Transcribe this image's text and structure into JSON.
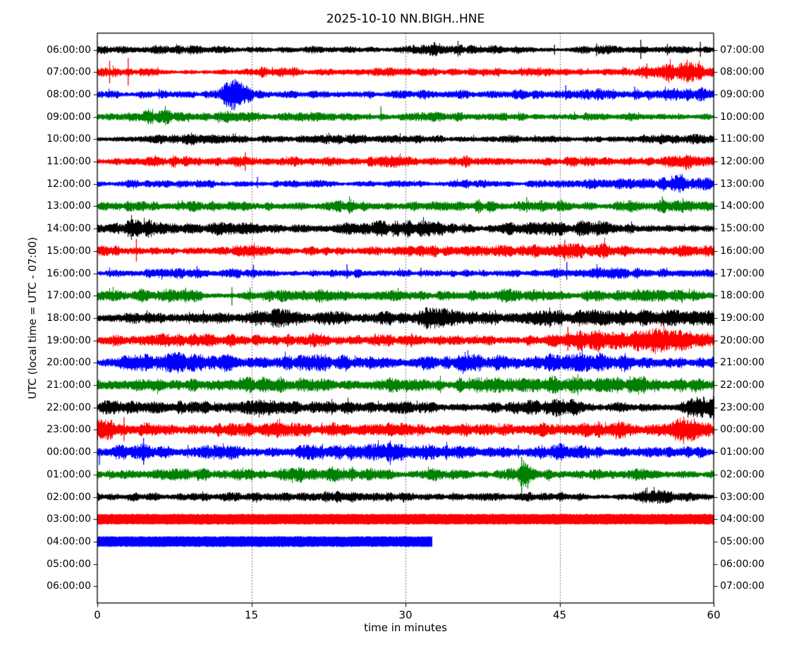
{
  "date": "2025-10-10",
  "station_id": "NN.BIGH..HNE",
  "colors": {
    "trace_black": "#000000",
    "trace_red": "#ff0000",
    "trace_blue": "#0000ff",
    "trace_green": "#008000",
    "axes": "#000000",
    "grid": "#333333",
    "background": "#ffffff"
  },
  "chart_data": {
    "type": "line",
    "variant": "seismogram-dayplot-helicorder",
    "title": "2025-10-10 NN.BIGH..HNE",
    "xlabel": "time in minutes",
    "ylabel": "UTC (local time = UTC - 07:00)",
    "xlim": [
      0,
      60
    ],
    "x_ticks": [
      0,
      15,
      30,
      45,
      60
    ],
    "x_tick_labels": [
      "0",
      "15",
      "30",
      "45",
      "60"
    ],
    "grid": {
      "vertical_dotted_minutes": [
        15,
        30,
        45
      ],
      "horizontal": false
    },
    "minutes_per_row": 60,
    "left_axis_meaning": "UTC start time of each one-hour trace row",
    "right_axis_meaning": "UTC end time of each one-hour trace row",
    "rows": [
      {
        "utc_label": "06:00:00",
        "local_label": "07:00:00",
        "color": "#000000",
        "style": "noise",
        "amp": 6.5,
        "start": 0,
        "end": 60,
        "bumps": [
          [
            33,
            2.5,
            1.7
          ],
          [
            20,
            4,
            1.15
          ]
        ],
        "spikes": [
          [
            44.5,
            7,
            7
          ],
          [
            48.6,
            9,
            9
          ],
          [
            52.9,
            14,
            13
          ],
          [
            55.5,
            8,
            8
          ],
          [
            58.7,
            11,
            10
          ]
        ]
      },
      {
        "utc_label": "07:00:00",
        "local_label": "08:00:00",
        "color": "#ff0000",
        "style": "noise",
        "amp": 6.5,
        "start": 0,
        "end": 60,
        "bumps": [
          [
            19,
            3,
            1.3
          ],
          [
            41,
            2,
            1.3
          ],
          [
            54,
            3,
            1.9
          ],
          [
            58,
            2,
            1.5
          ]
        ],
        "spikes": [
          [
            1.2,
            16,
            16
          ],
          [
            3.0,
            20,
            19
          ],
          [
            53.5,
            12,
            10
          ]
        ]
      },
      {
        "utc_label": "08:00:00",
        "local_label": "09:00:00",
        "color": "#0000ff",
        "style": "noise",
        "amp": 6.5,
        "start": 0,
        "end": 60,
        "bumps": [
          [
            13.2,
            0.9,
            3.4
          ],
          [
            14.6,
            1.2,
            2.2
          ],
          [
            37.2,
            1.5,
            1.7
          ],
          [
            48,
            3,
            1.35
          ],
          [
            57,
            2.5,
            1.6
          ]
        ],
        "spikes": [
          [
            13.4,
            21,
            19
          ],
          [
            45.6,
            13,
            8
          ],
          [
            52.3,
            11,
            8
          ]
        ]
      },
      {
        "utc_label": "09:00:00",
        "local_label": "10:00:00",
        "color": "#008000",
        "style": "noise",
        "amp": 6.5,
        "start": 0,
        "end": 60,
        "bumps": [
          [
            5.5,
            1.8,
            1.9
          ],
          [
            12.8,
            1.2,
            1.5
          ],
          [
            34,
            10,
            1.1
          ]
        ],
        "spikes": [
          [
            27.6,
            15,
            6
          ]
        ]
      },
      {
        "utc_label": "10:00:00",
        "local_label": "11:00:00",
        "color": "#000000",
        "style": "noise",
        "amp": 6,
        "start": 0,
        "end": 60,
        "bumps": [
          [
            8.6,
            1.5,
            1.5
          ],
          [
            24,
            2,
            1.25
          ],
          [
            56.5,
            2,
            1.3
          ]
        ],
        "spikes": []
      },
      {
        "utc_label": "11:00:00",
        "local_label": "12:00:00",
        "color": "#ff0000",
        "style": "noise",
        "amp": 8.5,
        "start": 0,
        "end": 60,
        "bumps": [
          [
            14.6,
            1.5,
            1.5
          ],
          [
            28,
            2,
            1.2
          ],
          [
            57,
            2,
            1.4
          ]
        ],
        "spikes": [
          [
            14.4,
            13,
            13
          ],
          [
            57.3,
            8,
            12
          ]
        ]
      },
      {
        "utc_label": "12:00:00",
        "local_label": "13:00:00",
        "color": "#0000ff",
        "style": "noise",
        "amp": 7,
        "start": 0,
        "end": 60,
        "bumps": [
          [
            9.5,
            1.5,
            1.4
          ],
          [
            50,
            6,
            1.5
          ],
          [
            55,
            3,
            1.6
          ]
        ],
        "spikes": [
          [
            15.6,
            10,
            6
          ]
        ]
      },
      {
        "utc_label": "13:00:00",
        "local_label": "14:00:00",
        "color": "#008000",
        "style": "noise",
        "amp": 8.5,
        "start": 0,
        "end": 60,
        "bumps": [
          [
            17,
            4,
            1.2
          ],
          [
            43,
            2,
            1.4
          ],
          [
            52,
            1.5,
            1.6
          ],
          [
            55,
            1.5,
            1.8
          ],
          [
            58.5,
            1.5,
            1.5
          ]
        ],
        "spikes": [
          [
            41.8,
            13,
            9
          ],
          [
            55,
            14,
            8
          ]
        ]
      },
      {
        "utc_label": "14:00:00",
        "local_label": "15:00:00",
        "color": "#000000",
        "style": "noise",
        "amp": 9.5,
        "start": 0,
        "end": 60,
        "bumps": [
          [
            4.3,
            1.5,
            1.7
          ],
          [
            29,
            3,
            1.3
          ],
          [
            45,
            2,
            1.4
          ]
        ],
        "spikes": []
      },
      {
        "utc_label": "15:00:00",
        "local_label": "16:00:00",
        "color": "#ff0000",
        "style": "noise",
        "amp": 9.5,
        "start": 0,
        "end": 60,
        "bumps": [
          [
            4,
            1.5,
            1.5
          ],
          [
            14.5,
            2,
            1.4
          ],
          [
            46,
            2.5,
            1.9
          ],
          [
            51,
            2,
            1.5
          ]
        ],
        "spikes": [
          [
            3.8,
            17,
            15
          ],
          [
            45.5,
            16,
            14
          ]
        ]
      },
      {
        "utc_label": "16:00:00",
        "local_label": "17:00:00",
        "color": "#0000ff",
        "style": "noise",
        "amp": 7.5,
        "start": 0,
        "end": 60,
        "bumps": [
          [
            16,
            3,
            1.25
          ],
          [
            45.5,
            2,
            1.5
          ]
        ],
        "spikes": [
          [
            9.7,
            10,
            6
          ],
          [
            15.2,
            12,
            7
          ],
          [
            24.3,
            13,
            8
          ],
          [
            31.5,
            8,
            6
          ],
          [
            45.7,
            16,
            9
          ]
        ]
      },
      {
        "utc_label": "17:00:00",
        "local_label": "18:00:00",
        "color": "#008000",
        "style": "noise",
        "amp": 9,
        "start": 0,
        "end": 60,
        "bumps": [
          [
            5.5,
            2.5,
            1.6
          ],
          [
            24,
            2,
            1.3
          ],
          [
            39,
            3,
            1.35
          ],
          [
            54,
            3,
            1.4
          ]
        ],
        "spikes": [
          [
            13.1,
            12,
            14
          ]
        ]
      },
      {
        "utc_label": "18:00:00",
        "local_label": "19:00:00",
        "color": "#000000",
        "style": "noise",
        "amp": 9.5,
        "start": 0,
        "end": 60,
        "bumps": [
          [
            11,
            1.5,
            1.5
          ],
          [
            17,
            1.5,
            1.45
          ],
          [
            25.5,
            1.8,
            1.5
          ],
          [
            33.5,
            2,
            1.6
          ],
          [
            41,
            2,
            1.35
          ],
          [
            50,
            2.5,
            1.6
          ],
          [
            57,
            2,
            1.4
          ]
        ],
        "spikes": []
      },
      {
        "utc_label": "19:00:00",
        "local_label": "20:00:00",
        "color": "#ff0000",
        "style": "noise",
        "amp": 12,
        "start": 0,
        "end": 60,
        "bumps": [
          [
            21,
            3,
            1.2
          ],
          [
            46,
            2,
            1.5
          ],
          [
            52,
            4,
            1.3
          ],
          [
            57.5,
            2.5,
            1.5
          ]
        ],
        "spikes": [
          [
            45.8,
            19,
            15
          ]
        ]
      },
      {
        "utc_label": "20:00:00",
        "local_label": "21:00:00",
        "color": "#0000ff",
        "style": "noise",
        "amp": 12,
        "start": 0,
        "end": 60,
        "bumps": [
          [
            10,
            4,
            1.15
          ],
          [
            33,
            4,
            1.2
          ],
          [
            50,
            5,
            1.25
          ]
        ],
        "spikes": []
      },
      {
        "utc_label": "21:00:00",
        "local_label": "22:00:00",
        "color": "#008000",
        "style": "noise",
        "amp": 12,
        "start": 0,
        "end": 60,
        "bumps": [
          [
            7,
            3,
            1.2
          ],
          [
            27,
            4,
            1.15
          ],
          [
            44,
            4,
            1.2
          ]
        ],
        "spikes": []
      },
      {
        "utc_label": "22:00:00",
        "local_label": "23:00:00",
        "color": "#000000",
        "style": "noise",
        "amp": 11.5,
        "start": 0,
        "end": 60,
        "bumps": [
          [
            13,
            3,
            1.2
          ],
          [
            30,
            3,
            1.15
          ],
          [
            47,
            3,
            1.25
          ],
          [
            58,
            1.5,
            1.6
          ],
          [
            59.3,
            1,
            2.2
          ]
        ],
        "spikes": []
      },
      {
        "utc_label": "23:00:00",
        "local_label": "00:00:00",
        "color": "#ff0000",
        "style": "noise",
        "amp": 12,
        "start": 0,
        "end": 60,
        "bumps": [
          [
            3,
            2,
            1.4
          ],
          [
            25,
            4,
            1.15
          ],
          [
            44,
            4,
            1.2
          ],
          [
            57,
            3,
            1.3
          ]
        ],
        "spikes": [
          [
            2.6,
            18,
            16
          ]
        ]
      },
      {
        "utc_label": "00:00:00",
        "local_label": "01:00:00",
        "color": "#0000ff",
        "style": "noise",
        "amp": 11.5,
        "start": 0,
        "end": 60,
        "bumps": [
          [
            8,
            4,
            1.15
          ],
          [
            30,
            4,
            1.1
          ],
          [
            52,
            4,
            1.15
          ]
        ],
        "spikes": [
          [
            0.2,
            6,
            18
          ],
          [
            4.5,
            20,
            18
          ],
          [
            41,
            10,
            8
          ]
        ]
      },
      {
        "utc_label": "01:00:00",
        "local_label": "02:00:00",
        "color": "#008000",
        "style": "noise",
        "amp": 9.5,
        "start": 0,
        "end": 60,
        "bumps": [
          [
            15,
            3,
            1.3
          ],
          [
            24,
            3,
            1.15
          ],
          [
            41.5,
            0.5,
            2.2
          ],
          [
            53,
            8,
            0.85
          ]
        ],
        "spikes": [
          [
            41.3,
            25,
            28
          ],
          [
            41.9,
            14,
            20
          ]
        ]
      },
      {
        "utc_label": "02:00:00",
        "local_label": "03:00:00",
        "color": "#000000",
        "style": "noise",
        "amp": 7,
        "start": 0,
        "end": 60,
        "bumps": [
          [
            12.5,
            2,
            1.5
          ],
          [
            27,
            3,
            1.2
          ],
          [
            56.5,
            2.5,
            1.45
          ]
        ],
        "spikes": []
      },
      {
        "utc_label": "03:00:00",
        "local_label": "04:00:00",
        "color": "#ff0000",
        "style": "flat",
        "amp": 7,
        "start": 0,
        "end": 60,
        "bumps": [],
        "spikes": []
      },
      {
        "utc_label": "04:00:00",
        "local_label": "05:00:00",
        "color": "#0000ff",
        "style": "flat",
        "amp": 7,
        "start": 0,
        "end": 32.6,
        "bumps": [],
        "spikes": []
      },
      {
        "utc_label": "05:00:00",
        "local_label": "06:00:00",
        "color": null,
        "style": "none",
        "amp": 0,
        "start": 0,
        "end": 0,
        "bumps": [],
        "spikes": []
      },
      {
        "utc_label": "06:00:00",
        "local_label": "07:00:00",
        "color": null,
        "style": "none",
        "amp": 0,
        "start": 0,
        "end": 0,
        "bumps": [],
        "spikes": []
      }
    ]
  }
}
